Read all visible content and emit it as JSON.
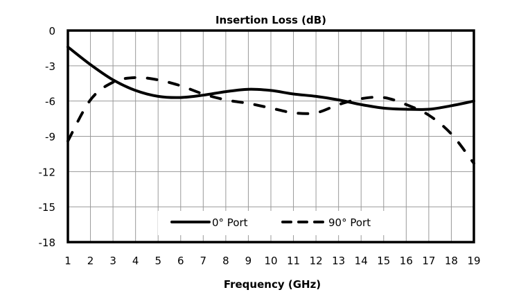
{
  "chart_data": {
    "type": "line",
    "title": "Insertion Loss (dB)",
    "xlabel": "Frequency (GHz)",
    "ylabel": "",
    "xlim": [
      1,
      19
    ],
    "ylim": [
      -18,
      0
    ],
    "x_ticks": [
      "1",
      "2",
      "3",
      "4",
      "5",
      "6",
      "7",
      "8",
      "9",
      "10",
      "11",
      "12",
      "13",
      "14",
      "15",
      "16",
      "17",
      "18",
      "19"
    ],
    "y_ticks": [
      "0",
      "-3",
      "-6",
      "-9",
      "-12",
      "-15",
      "-18"
    ],
    "y_tick_values": [
      0,
      -3,
      -6,
      -9,
      -12,
      -15,
      -18
    ],
    "x_tick_values": [
      1,
      2,
      3,
      4,
      5,
      6,
      7,
      8,
      9,
      10,
      11,
      12,
      13,
      14,
      15,
      16,
      17,
      18,
      19
    ],
    "grid": true,
    "legend_position": "bottom-center",
    "x": [
      1,
      2,
      3,
      4,
      5,
      6,
      7,
      8,
      9,
      10,
      11,
      12,
      13,
      14,
      15,
      16,
      17,
      18,
      19
    ],
    "series": [
      {
        "name": "0° Port",
        "style": "solid",
        "color": "#000000",
        "values": [
          -1.4,
          -2.9,
          -4.2,
          -5.1,
          -5.6,
          -5.7,
          -5.5,
          -5.2,
          -5.0,
          -5.1,
          -5.4,
          -5.6,
          -5.9,
          -6.3,
          -6.6,
          -6.7,
          -6.7,
          -6.4,
          -6.0
        ]
      },
      {
        "name": "90° Port",
        "style": "dashed",
        "color": "#000000",
        "values": [
          -9.4,
          -5.9,
          -4.4,
          -4.0,
          -4.2,
          -4.7,
          -5.4,
          -5.9,
          -6.2,
          -6.6,
          -7.0,
          -7.0,
          -6.3,
          -5.8,
          -5.7,
          -6.3,
          -7.2,
          -8.8,
          -11.3
        ]
      }
    ],
    "colors": {
      "grid": "#999999",
      "axis": "#000000",
      "background": "#ffffff"
    }
  }
}
